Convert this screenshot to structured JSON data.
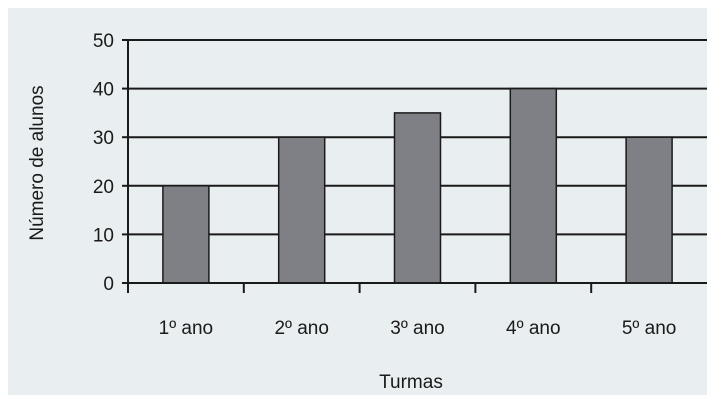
{
  "colors": {
    "background": "#e9eef0",
    "bar": "#7f8085",
    "bar_stroke": "#1a1a1a",
    "grid": "#1a1a1a"
  },
  "chart_data": {
    "type": "bar",
    "categories": [
      "1º ano",
      "2º ano",
      "3º ano",
      "4º ano",
      "5º ano"
    ],
    "values": [
      20,
      30,
      35,
      40,
      30
    ],
    "xlabel": "Turmas",
    "ylabel": "Número de alunos",
    "ylim": [
      0,
      50
    ],
    "yticks": [
      "0",
      "10",
      "20",
      "30",
      "40",
      "50"
    ],
    "grid": true,
    "legend": "none"
  }
}
